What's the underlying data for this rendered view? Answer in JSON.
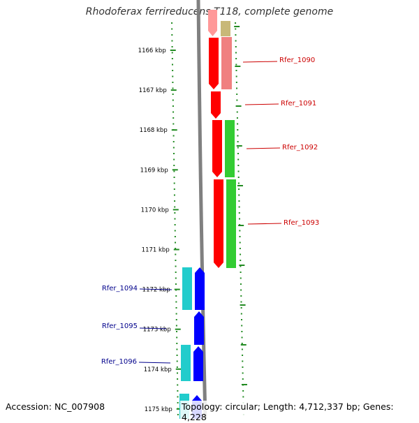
{
  "title": "Rhodoferax ferrireducens T118, complete genome",
  "footer": {
    "accession": "Accession: NC_007908",
    "summary": "Topology: circular; Length: 4,712,337 bp; Genes: 4,228"
  },
  "ruler": {
    "labels": [
      "1166 kbp",
      "1167 kbp",
      "1168 kbp",
      "1169 kbp",
      "1170 kbp",
      "1171 kbp",
      "1172 kbp",
      "1173 kbp",
      "1174 kbp",
      "1175 kbp"
    ]
  },
  "genes": [
    {
      "name": "Rfer_1090",
      "strand": "+",
      "color": "#cc0000"
    },
    {
      "name": "Rfer_1091",
      "strand": "+",
      "color": "#cc0000"
    },
    {
      "name": "Rfer_1092",
      "strand": "+",
      "color": "#cc0000"
    },
    {
      "name": "Rfer_1093",
      "strand": "+",
      "color": "#cc0000"
    },
    {
      "name": "Rfer_1094",
      "strand": "-",
      "color": "#00008b"
    },
    {
      "name": "Rfer_1095",
      "strand": "-",
      "color": "#00008b"
    },
    {
      "name": "Rfer_1096",
      "strand": "-",
      "color": "#00008b"
    }
  ],
  "colors": {
    "forward_cds": "#ff0000",
    "reverse_cds": "#0000ff",
    "cog_green": "#33cc33",
    "cog_pink": "#f08080",
    "cog_khaki": "#c8b878",
    "cog_cyan": "#22cccc",
    "backbone": "#808080",
    "tick_green": "#228b22"
  }
}
